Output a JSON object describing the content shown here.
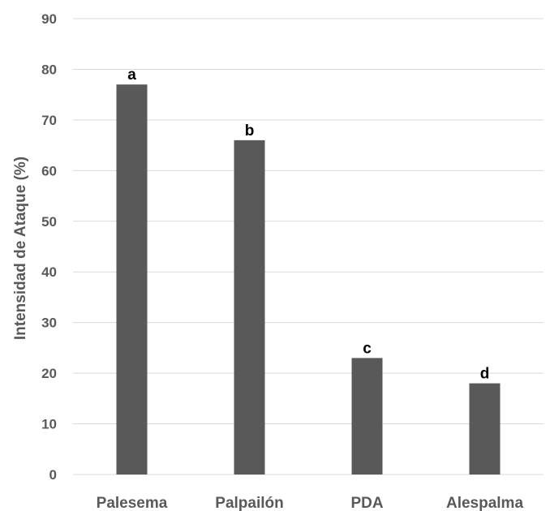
{
  "chart_data": {
    "type": "bar",
    "title": "",
    "xlabel": "",
    "ylabel": "Intensidad de Ataque (%)",
    "categories": [
      "Palesema",
      "Palpailón",
      "PDA",
      "Alespalma"
    ],
    "values": [
      77,
      66,
      23,
      18
    ],
    "data_labels": [
      "a",
      "b",
      "c",
      "d"
    ],
    "ylim": [
      0,
      90
    ],
    "yticks": [
      0,
      10,
      20,
      30,
      40,
      50,
      60,
      70,
      80,
      90
    ],
    "grid": true,
    "legend": "none",
    "colors": {
      "bar": "#595959",
      "grid": "#d9d9d9",
      "axis_text": "#595959",
      "data_label": "#000000"
    }
  }
}
